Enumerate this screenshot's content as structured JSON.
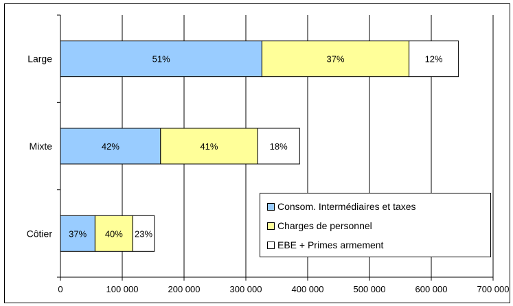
{
  "chart_data": {
    "type": "bar",
    "orientation": "horizontal",
    "stacked": true,
    "categories": [
      "Large",
      "Mixte",
      "Côtier"
    ],
    "series": [
      {
        "name": "Consom. Intermédiaires et taxes",
        "color": "#99ccff",
        "values": [
          326000,
          162000,
          56000
        ]
      },
      {
        "name": "Charges de personnel",
        "color": "#ffff99",
        "values": [
          238000,
          157000,
          61000
        ]
      },
      {
        "name": "EBE + Primes armement",
        "color": "#ffffff",
        "values": [
          80000,
          68000,
          35000
        ]
      }
    ],
    "segment_labels": [
      [
        "51%",
        "37%",
        "12%"
      ],
      [
        "42%",
        "41%",
        "18%"
      ],
      [
        "37%",
        "40%",
        "23%"
      ]
    ],
    "x_ticks": [
      0,
      100000,
      200000,
      300000,
      400000,
      500000,
      600000,
      700000
    ],
    "x_tick_labels": [
      "0",
      "100 000",
      "200 000",
      "300 000",
      "400 000",
      "500 000",
      "600 000",
      "700 000"
    ],
    "xlim": [
      0,
      700000
    ],
    "grid": "vertical",
    "legend_position": "bottom-right",
    "title": "",
    "xlabel": "",
    "ylabel": ""
  }
}
